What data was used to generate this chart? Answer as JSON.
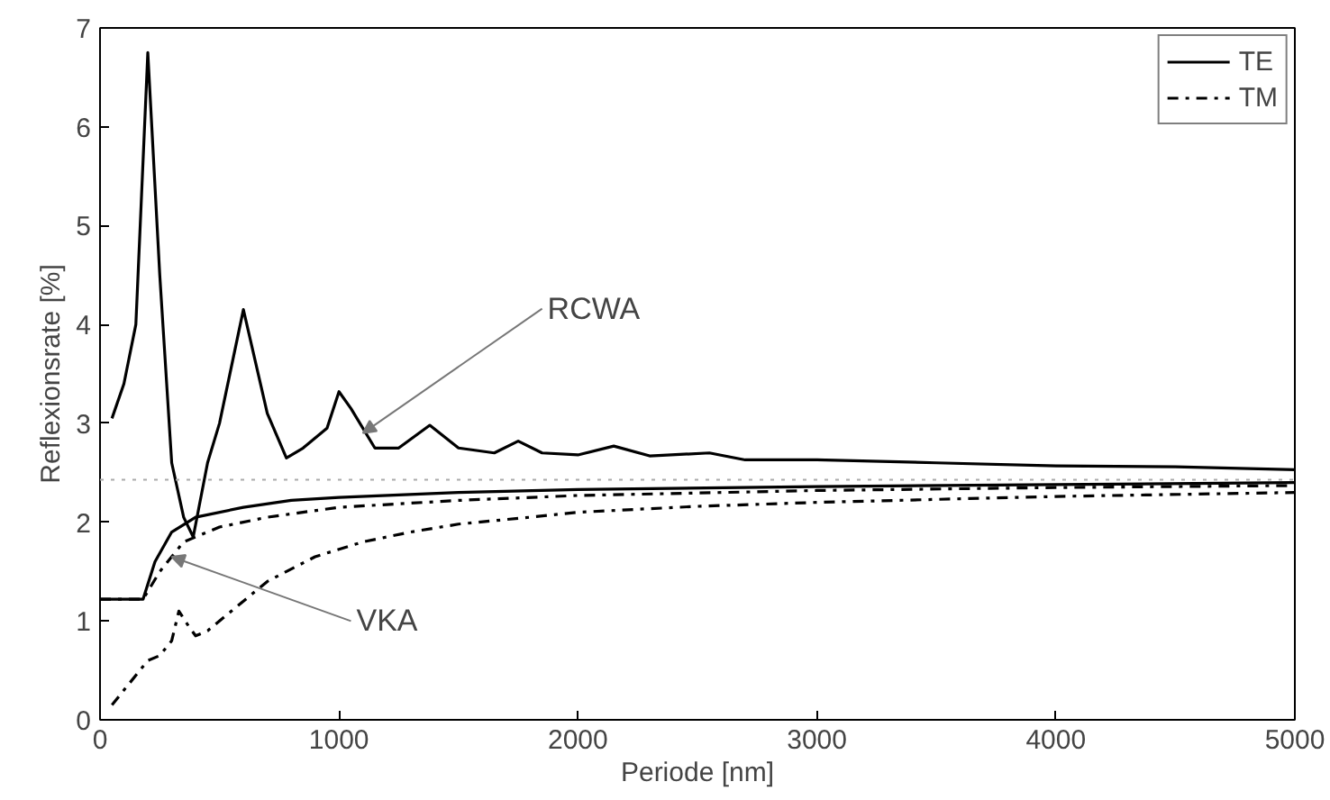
{
  "chart_data": {
    "type": "line",
    "xlabel": "Periode [nm]",
    "ylabel": "Reflexionsrate [%]",
    "xlim": [
      0,
      5000
    ],
    "ylim": [
      0,
      7
    ],
    "xticks": [
      0,
      1000,
      2000,
      3000,
      4000,
      5000
    ],
    "yticks": [
      0,
      1,
      2,
      3,
      4,
      5,
      6,
      7
    ],
    "grid": false,
    "legend": "top right",
    "marker": "none",
    "series": [
      {
        "name": "TE",
        "color": "#000000",
        "line_style": "solid",
        "x": [
          50,
          100,
          150,
          200,
          250,
          300,
          350,
          390,
          450,
          500,
          600,
          700,
          780,
          850,
          950,
          1000,
          1050,
          1150,
          1250,
          1380,
          1500,
          1650,
          1750,
          1850,
          2000,
          2150,
          2300,
          2550,
          2700,
          3000,
          3500,
          4000,
          4500,
          5000
        ],
        "values": [
          3.05,
          3.4,
          4.0,
          6.75,
          4.5,
          2.6,
          2.05,
          1.85,
          2.6,
          3.0,
          4.15,
          3.1,
          2.65,
          2.75,
          2.95,
          3.32,
          3.15,
          2.75,
          2.75,
          2.98,
          2.75,
          2.7,
          2.82,
          2.7,
          2.68,
          2.77,
          2.67,
          2.7,
          2.63,
          2.63,
          2.6,
          2.57,
          2.56,
          2.53
        ]
      },
      {
        "name": "TM",
        "color": "#000000",
        "line_style": "dashdot",
        "x": [
          50,
          100,
          200,
          250,
          300,
          330,
          370,
          400,
          450,
          550,
          700,
          900,
          1100,
          1300,
          1500,
          1800,
          2000,
          2500,
          3000,
          3500,
          4000,
          5000
        ],
        "values": [
          0.15,
          0.3,
          0.6,
          0.65,
          0.8,
          1.1,
          0.95,
          0.85,
          0.9,
          1.1,
          1.4,
          1.65,
          1.8,
          1.9,
          1.98,
          2.05,
          2.1,
          2.16,
          2.2,
          2.23,
          2.26,
          2.3
        ]
      },
      {
        "color": "#000000",
        "line_style": "solid",
        "x": [
          0,
          180,
          230,
          300,
          400,
          600,
          800,
          1000,
          1500,
          2000,
          3000,
          4000,
          5000
        ],
        "values": [
          1.22,
          1.22,
          1.6,
          1.9,
          2.05,
          2.15,
          2.22,
          2.25,
          2.3,
          2.33,
          2.36,
          2.38,
          2.4
        ]
      },
      {
        "color": "#000000",
        "line_style": "dashdot",
        "x": [
          0,
          180,
          250,
          350,
          500,
          700,
          1000,
          1500,
          2000,
          3000,
          4000,
          5000
        ],
        "values": [
          1.22,
          1.22,
          1.5,
          1.8,
          1.95,
          2.05,
          2.15,
          2.22,
          2.27,
          2.32,
          2.35,
          2.37
        ]
      }
    ],
    "ref_lines": [
      {
        "axis": "y",
        "value": 2.43,
        "color": "#aaaaaa",
        "line_style": "dotted"
      }
    ],
    "annotations": [
      {
        "text": "RCWA",
        "x": 1100,
        "y": 2.9
      },
      {
        "text": "VKA",
        "x": 300,
        "y": 1.65
      }
    ]
  }
}
